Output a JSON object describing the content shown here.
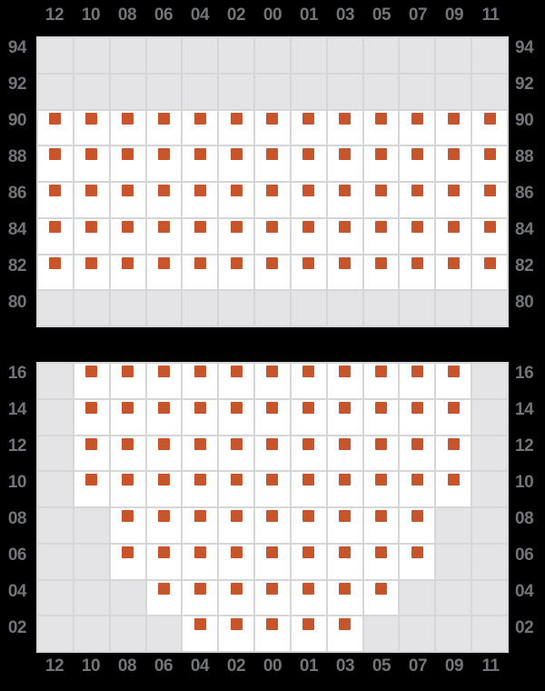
{
  "colors": {
    "page_bg": "#000000",
    "grid_line": "#d6d6d9",
    "empty_cell": "#e4e4e6",
    "filled_cell": "#ffffff",
    "marker": "#c7542a",
    "label_text": "#71757a"
  },
  "chart_data": {
    "type": "heatmap",
    "columns": [
      "12",
      "10",
      "08",
      "06",
      "04",
      "02",
      "00",
      "01",
      "03",
      "05",
      "07",
      "09",
      "11"
    ],
    "x_axis_positions": [
      "top",
      "bottom"
    ],
    "y_axis_positions": [
      "left",
      "right"
    ],
    "marker_shape": "square",
    "panels": [
      {
        "id": "top",
        "rows": [
          "94",
          "92",
          "90",
          "88",
          "86",
          "84",
          "82",
          "80"
        ],
        "matrix": [
          [
            0,
            0,
            0,
            0,
            0,
            0,
            0,
            0,
            0,
            0,
            0,
            0,
            0
          ],
          [
            0,
            0,
            0,
            0,
            0,
            0,
            0,
            0,
            0,
            0,
            0,
            0,
            0
          ],
          [
            1,
            1,
            1,
            1,
            1,
            1,
            1,
            1,
            1,
            1,
            1,
            1,
            1
          ],
          [
            1,
            1,
            1,
            1,
            1,
            1,
            1,
            1,
            1,
            1,
            1,
            1,
            1
          ],
          [
            1,
            1,
            1,
            1,
            1,
            1,
            1,
            1,
            1,
            1,
            1,
            1,
            1
          ],
          [
            1,
            1,
            1,
            1,
            1,
            1,
            1,
            1,
            1,
            1,
            1,
            1,
            1
          ],
          [
            1,
            1,
            1,
            1,
            1,
            1,
            1,
            1,
            1,
            1,
            1,
            1,
            1
          ],
          [
            0,
            0,
            0,
            0,
            0,
            0,
            0,
            0,
            0,
            0,
            0,
            0,
            0
          ]
        ]
      },
      {
        "id": "bottom",
        "rows": [
          "16",
          "14",
          "12",
          "10",
          "08",
          "06",
          "04",
          "02"
        ],
        "matrix": [
          [
            0,
            1,
            1,
            1,
            1,
            1,
            1,
            1,
            1,
            1,
            1,
            1,
            0
          ],
          [
            0,
            1,
            1,
            1,
            1,
            1,
            1,
            1,
            1,
            1,
            1,
            1,
            0
          ],
          [
            0,
            1,
            1,
            1,
            1,
            1,
            1,
            1,
            1,
            1,
            1,
            1,
            0
          ],
          [
            0,
            1,
            1,
            1,
            1,
            1,
            1,
            1,
            1,
            1,
            1,
            1,
            0
          ],
          [
            0,
            0,
            1,
            1,
            1,
            1,
            1,
            1,
            1,
            1,
            1,
            0,
            0
          ],
          [
            0,
            0,
            1,
            1,
            1,
            1,
            1,
            1,
            1,
            1,
            1,
            0,
            0
          ],
          [
            0,
            0,
            0,
            1,
            1,
            1,
            1,
            1,
            1,
            1,
            0,
            0,
            0
          ],
          [
            0,
            0,
            0,
            0,
            1,
            1,
            1,
            1,
            1,
            0,
            0,
            0,
            0
          ]
        ]
      }
    ]
  }
}
